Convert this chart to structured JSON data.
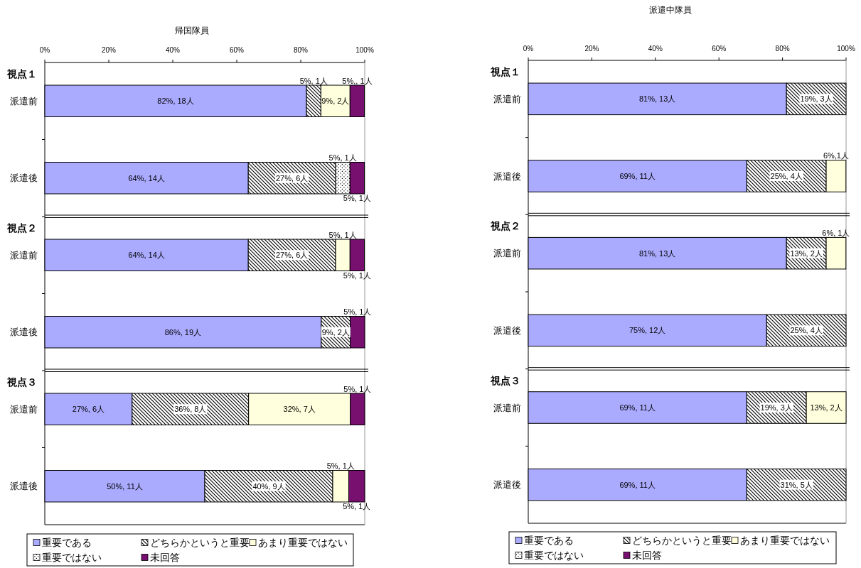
{
  "chart_data": [
    {
      "type": "bar",
      "orientation": "horizontal",
      "stacked": true,
      "title": "帰国隊員",
      "categories": [
        "派遣前",
        "派遣後",
        "派遣前",
        "派遣後",
        "派遣前",
        "派遣後"
      ],
      "annotations": [
        "視点１",
        "視点２",
        "視点３"
      ],
      "xlim": [
        0,
        100
      ],
      "xticks": [
        {
          "value": 0,
          "label": "0%"
        },
        {
          "value": 20,
          "label": "20%"
        },
        {
          "value": 40,
          "label": "40%"
        },
        {
          "value": 60,
          "label": "60%"
        },
        {
          "value": 80,
          "label": "80%"
        },
        {
          "value": 100,
          "label": "100%"
        }
      ],
      "legend": "bottom",
      "series": [
        {
          "name": "重要である",
          "color": "#aaaaff",
          "values": [
            81.8,
            63.6,
            63.6,
            86.4,
            27.3,
            50
          ],
          "value_labels": [
            "82%, 18人",
            "64%, 14人",
            "64%, 14人",
            "86%, 19人",
            "27%, 6人",
            "50%, 11人"
          ]
        },
        {
          "name": "どちらかというと重要",
          "color": "#000000",
          "values": [
            4.5,
            27.3,
            27.3,
            9.1,
            36.4,
            40
          ],
          "value_labels": [
            "5%, 1人",
            "27%, 6人",
            "27%, 6人",
            "9%, 2人",
            "36%, 8人",
            "40%, 9人"
          ]
        },
        {
          "name": "あまり重要ではない",
          "color": "#ffffdd",
          "values": [
            9.1,
            null,
            4.5,
            null,
            31.8,
            5
          ],
          "value_labels": [
            "9%, 2人",
            null,
            "5%, 1人",
            null,
            "32%, 7人",
            "5%, 1人"
          ]
        },
        {
          "name": "重要ではない",
          "color": "#000000",
          "values": [
            null,
            4.5,
            null,
            null,
            null,
            null
          ],
          "value_labels": [
            null,
            "5%, 1人",
            null,
            null,
            null,
            null
          ]
        },
        {
          "name": "未回答",
          "color": "#781070",
          "values": [
            4.5,
            4.5,
            4.5,
            4.5,
            4.5,
            5
          ],
          "value_labels": [
            "5%,, 1人",
            "5%, 1人",
            "5%, 1人",
            "5%, 1人",
            "5%, 1人",
            "5%, 1人"
          ]
        }
      ]
    },
    {
      "type": "bar",
      "orientation": "horizontal",
      "stacked": true,
      "title": "派遣中隊員",
      "categories": [
        "派遣前",
        "派遣後",
        "派遣前",
        "派遣後",
        "派遣前",
        "派遣後"
      ],
      "annotations": [
        "視点１",
        "視点２",
        "視点３"
      ],
      "xlim": [
        0,
        100
      ],
      "xticks": [
        {
          "value": 0,
          "label": "0%"
        },
        {
          "value": 20,
          "label": "20%"
        },
        {
          "value": 40,
          "label": "40%"
        },
        {
          "value": 60,
          "label": "60%"
        },
        {
          "value": 80,
          "label": "80%"
        },
        {
          "value": 100,
          "label": "100%"
        }
      ],
      "legend": "bottom",
      "series": [
        {
          "name": "重要である",
          "color": "#aaaaff",
          "values": [
            81.25,
            68.75,
            81.25,
            75,
            68.75,
            68.75
          ],
          "value_labels": [
            "81%, 13人",
            "69%, 11人",
            "81%, 13人",
            "75%, 12人",
            "69%, 11人",
            "69%, 11人"
          ]
        },
        {
          "name": "どちらかというと重要",
          "color": "#000000",
          "values": [
            18.75,
            25,
            12.5,
            25,
            18.75,
            31.25
          ],
          "value_labels": [
            "19%, 3人",
            "25%, 4人",
            "13%, 2人",
            "25%, 4人",
            "19%, 3人",
            "31%, 5人"
          ]
        },
        {
          "name": "あまり重要ではない",
          "color": "#ffffdd",
          "values": [
            null,
            6.2,
            6.2,
            null,
            12.5,
            null
          ],
          "value_labels": [
            null,
            "6%,1人",
            "6%, 1人",
            null,
            "13%, 2人",
            null
          ]
        },
        {
          "name": "重要ではない",
          "color": "#000000",
          "values": [
            null,
            null,
            null,
            null,
            null,
            null
          ],
          "value_labels": [
            null,
            null,
            null,
            null,
            null,
            null
          ]
        },
        {
          "name": "未回答",
          "color": "#781070",
          "values": [
            null,
            null,
            null,
            null,
            null,
            null
          ],
          "value_labels": [
            null,
            null,
            null,
            null,
            null,
            null
          ]
        }
      ]
    }
  ]
}
